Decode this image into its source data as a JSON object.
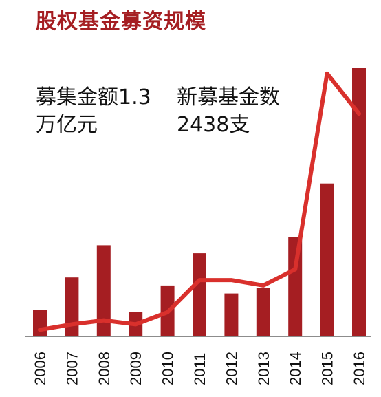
{
  "title": "股权基金募资规模",
  "annotations": {
    "left": "募集金额1.3万亿元",
    "right": "新募基金数2438支"
  },
  "colors": {
    "bar": "#a51e22",
    "line": "#d9302c",
    "axis": "#666666",
    "title": "#a51e22"
  },
  "chart_data": {
    "type": "bar",
    "title": "股权基金募资规模",
    "xlabel": "",
    "ylabel": "",
    "categories": [
      "2006",
      "2007",
      "2008",
      "2009",
      "2010",
      "2011",
      "2012",
      "2013",
      "2014",
      "2015",
      "2016"
    ],
    "series": [
      {
        "type": "bar",
        "values": [
          0.1,
          0.22,
          0.34,
          0.09,
          0.19,
          0.31,
          0.16,
          0.18,
          0.37,
          0.57,
          1.0
        ]
      },
      {
        "type": "line",
        "values": [
          0.025,
          0.045,
          0.06,
          0.045,
          0.09,
          0.21,
          0.21,
          0.19,
          0.25,
          0.98,
          0.83
        ]
      }
    ],
    "y_scale": "relative, no axis printed",
    "grid": false,
    "legend": "none"
  }
}
